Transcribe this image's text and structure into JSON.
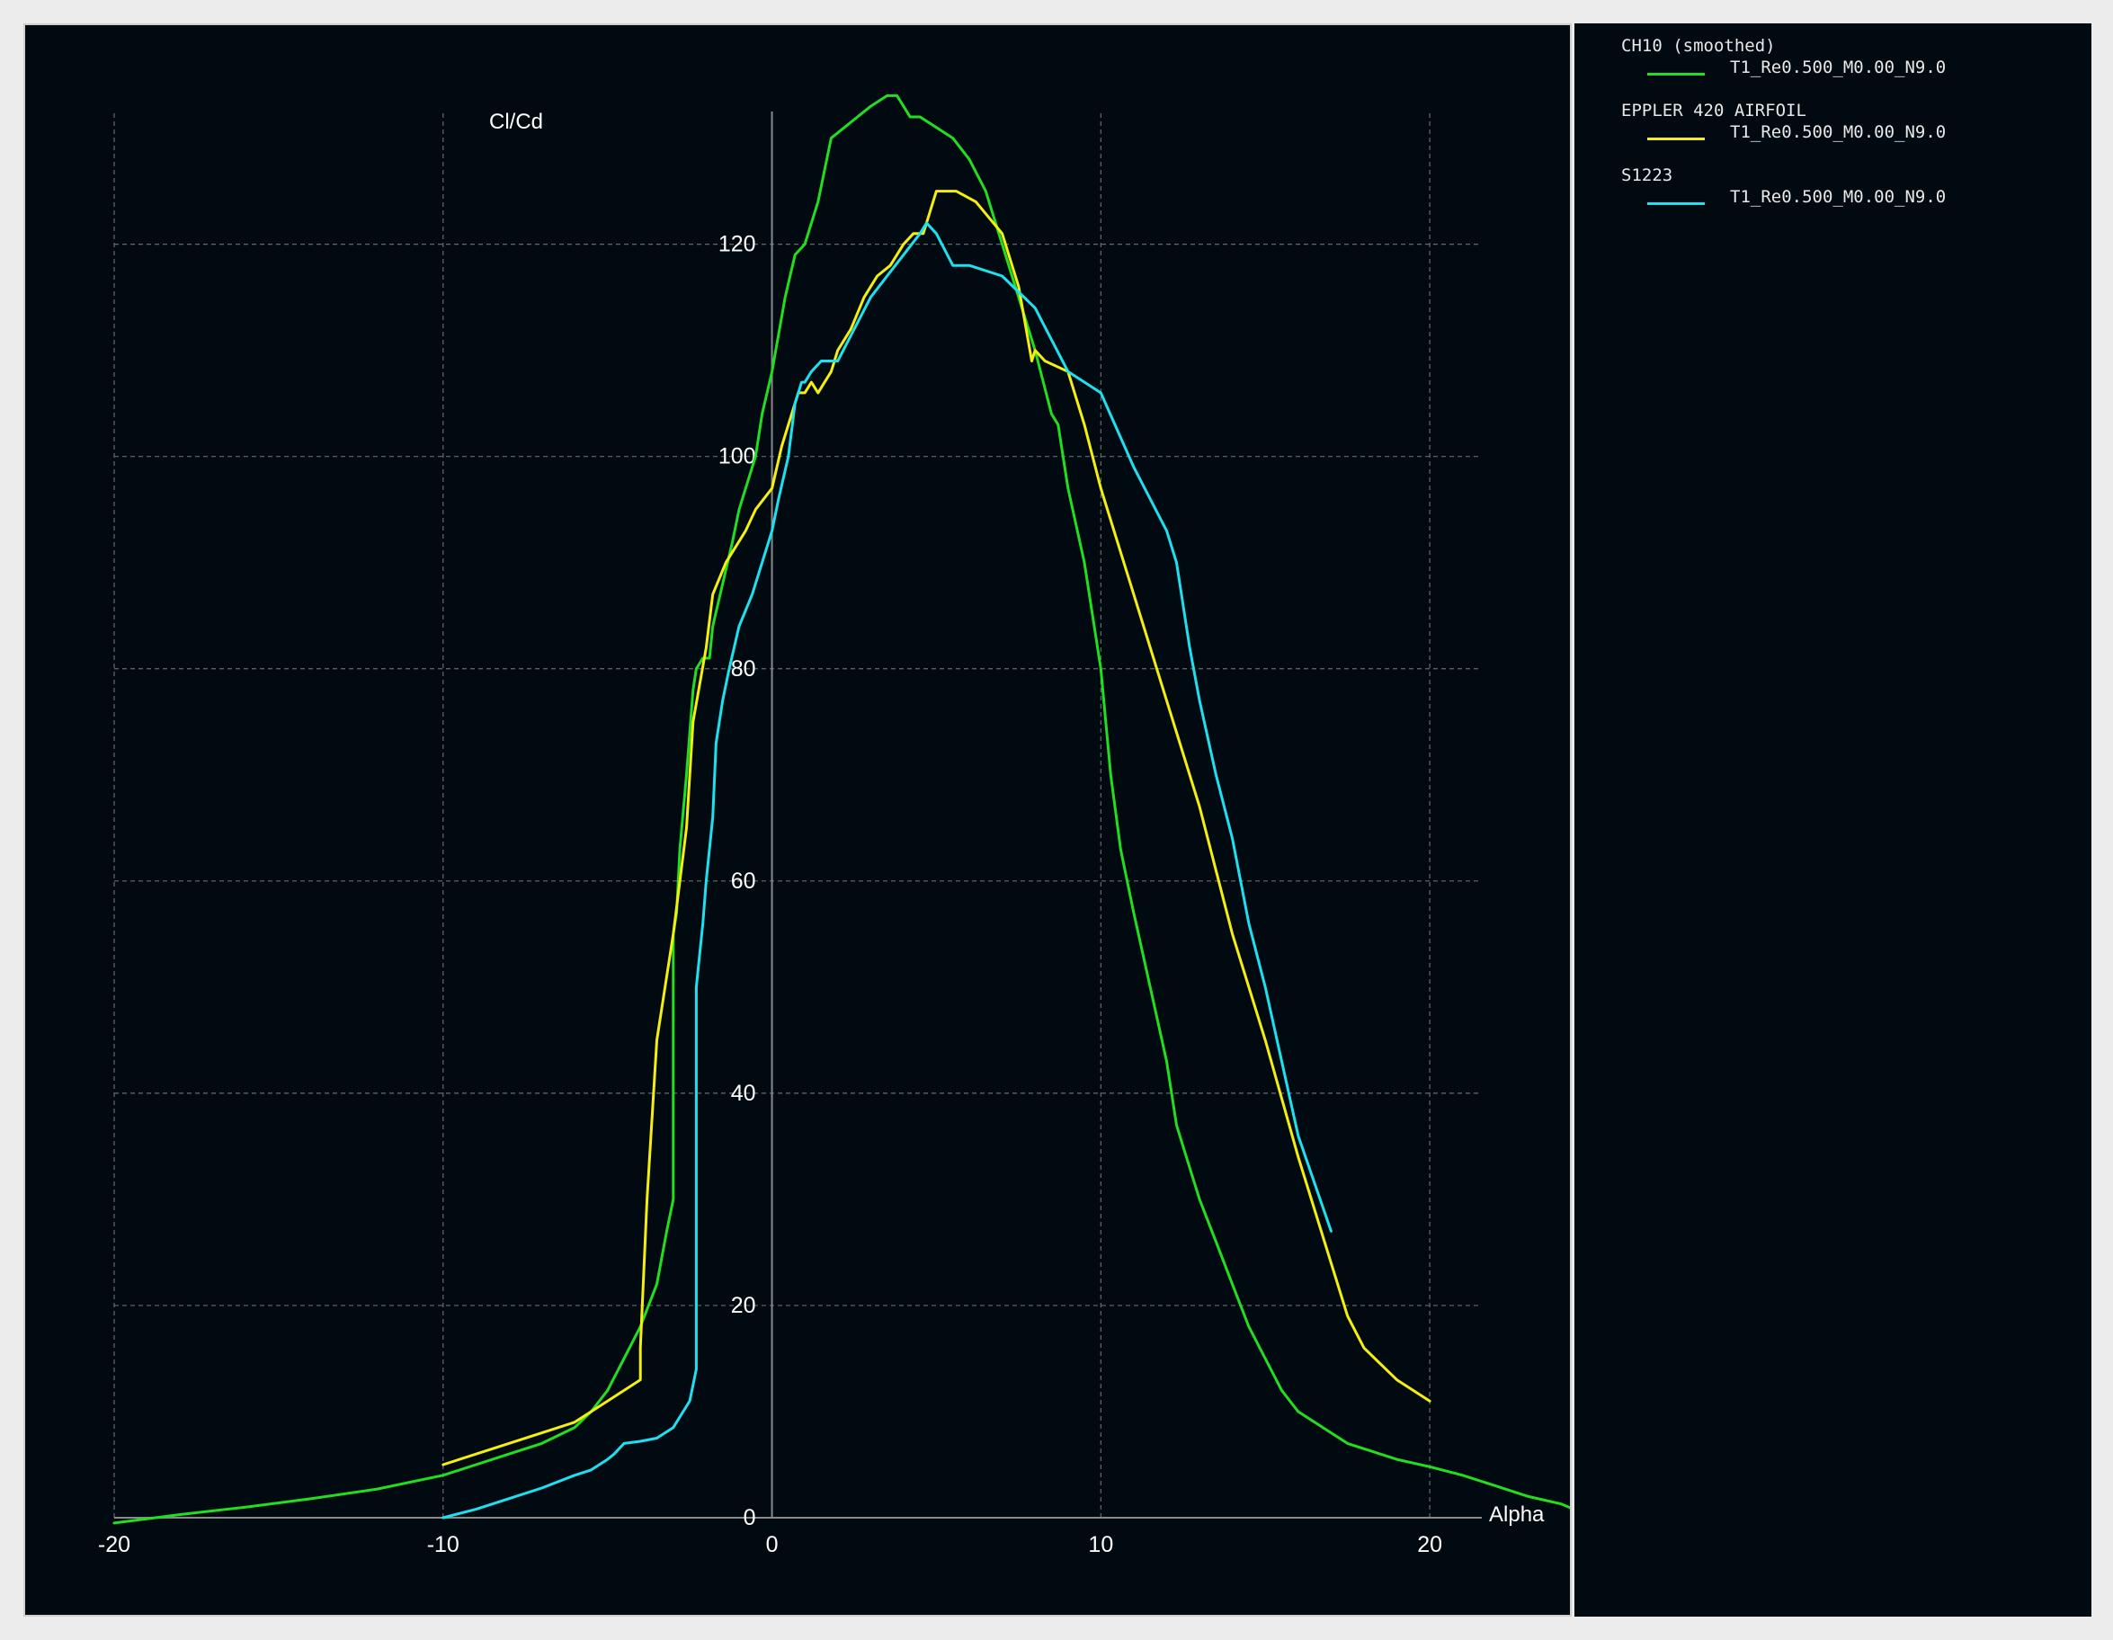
{
  "chart_data": {
    "type": "line",
    "xlabel": "Alpha",
    "ylabel": "Cl/Cd",
    "xlim": [
      -20,
      25
    ],
    "ylim": [
      0,
      132
    ],
    "xticks": [
      -20,
      -10,
      0,
      10,
      20
    ],
    "yticks": [
      0,
      20,
      40,
      60,
      80,
      100,
      120
    ],
    "grid": true,
    "legend_placement": "right-panel",
    "series": [
      {
        "name": "CH10 (smoothed)",
        "subtitle": "T1_Re0.500_M0.00_N9.0",
        "color": "#22dd22",
        "x": [
          -20,
          -18,
          -16,
          -14,
          -12,
          -10,
          -9,
          -8,
          -7,
          -6,
          -5.5,
          -5,
          -4.5,
          -4,
          -3.5,
          -3.2,
          -3,
          -3,
          -2.9,
          -2.8,
          -2.6,
          -2.4,
          -2.3,
          -2.1,
          -1.9,
          -1.8,
          -1.5,
          -1.2,
          -1,
          -0.8,
          -0.5,
          -0.3,
          0,
          0.4,
          0.7,
          1,
          1.4,
          1.6,
          1.8,
          2.2,
          2.6,
          3,
          3.5,
          3.8,
          4,
          4.2,
          4.5,
          5,
          5.5,
          6,
          6.5,
          7,
          7.5,
          8,
          8.5,
          8.7,
          9,
          9.5,
          10,
          10.3,
          10.6,
          11,
          11.5,
          12,
          12.3,
          12.6,
          13,
          13.5,
          14,
          14.5,
          15,
          15.5,
          16,
          16.5,
          17,
          17.5,
          18,
          19,
          20,
          21,
          22,
          23,
          24,
          25
        ],
        "y": [
          -0.5,
          0.3,
          1,
          1.8,
          2.7,
          4,
          5,
          6,
          7,
          8.5,
          10,
          12,
          15,
          18,
          22,
          27,
          30,
          55,
          57,
          63,
          70,
          78,
          80,
          81,
          81,
          84,
          88,
          92,
          95,
          97,
          100,
          104,
          108,
          115,
          119,
          120,
          124,
          127,
          130,
          131,
          132,
          133,
          134,
          134,
          133,
          132,
          132,
          131,
          130,
          128,
          125,
          120,
          115,
          110,
          104,
          103,
          97,
          90,
          80,
          70,
          63,
          57,
          50,
          43,
          37,
          34,
          30,
          26,
          22,
          18,
          15,
          12,
          10,
          9,
          8,
          7,
          6.5,
          5.5,
          4.8,
          4,
          3,
          2,
          1.3,
          0
        ]
      },
      {
        "name": "EPPLER 420 AIRFOIL",
        "subtitle": "T1_Re0.500_M0.00_N9.0",
        "color": "#f5ef10",
        "x": [
          -10,
          -8,
          -6,
          -5,
          -4,
          -4,
          -3.8,
          -3.5,
          -3,
          -2.6,
          -2.4,
          -2,
          -1.8,
          -1.4,
          -1,
          -0.8,
          -0.5,
          0,
          0.3,
          0.6,
          0.8,
          1,
          1.2,
          1.4,
          1.6,
          1.8,
          2,
          2.4,
          2.8,
          3.2,
          3.6,
          4,
          4.3,
          4.6,
          4.8,
          5,
          5.6,
          6.2,
          7,
          7.5,
          7.9,
          8,
          8.3,
          9,
          9.5,
          10,
          11,
          12,
          13,
          14,
          15,
          16,
          17,
          17.5,
          18,
          19,
          20
        ],
        "y": [
          5,
          7,
          9,
          11,
          13,
          16,
          30,
          45,
          55,
          65,
          75,
          82,
          87,
          90,
          92,
          93,
          95,
          97,
          101,
          104,
          106,
          106,
          107,
          106,
          107,
          108,
          110,
          112,
          115,
          117,
          118,
          120,
          121,
          121,
          123,
          125,
          125,
          124,
          121,
          116,
          109,
          110,
          109,
          108,
          103,
          97,
          87,
          77,
          67,
          55,
          45,
          34,
          24,
          19,
          16,
          13,
          11
        ]
      },
      {
        "name": "S1223",
        "subtitle": "T1_Re0.500_M0.00_N9.0",
        "color": "#1ee0f0",
        "x": [
          -10,
          -9,
          -8,
          -7,
          -6,
          -5.5,
          -5,
          -4.8,
          -4.5,
          -4,
          -3.5,
          -3,
          -2.5,
          -2.3,
          -2.3,
          -2.1,
          -2,
          -1.8,
          -1.7,
          -1.5,
          -1.3,
          -1,
          -0.6,
          -0.3,
          0,
          0.2,
          0.5,
          0.7,
          0.9,
          1,
          1.2,
          1.5,
          2,
          2.5,
          3,
          3.5,
          4,
          4.5,
          4.7,
          5,
          5.5,
          6,
          7,
          8,
          8.5,
          9,
          10,
          11,
          12,
          12.3,
          12.7,
          13,
          13.5,
          14,
          14.5,
          15,
          15.5,
          16,
          17
        ],
        "y": [
          0,
          0.8,
          1.8,
          2.8,
          4,
          4.5,
          5.5,
          6,
          7,
          7.2,
          7.5,
          8.5,
          11,
          14,
          50,
          56,
          60,
          66,
          73,
          77,
          80,
          84,
          87,
          90,
          93,
          96,
          100,
          105,
          107,
          107,
          108,
          109,
          109,
          112,
          115,
          117,
          119,
          121,
          122,
          121,
          118,
          118,
          117,
          114,
          111,
          108,
          106,
          99,
          93,
          90,
          82,
          77,
          70,
          64,
          56,
          50,
          43,
          36,
          27
        ]
      }
    ]
  }
}
